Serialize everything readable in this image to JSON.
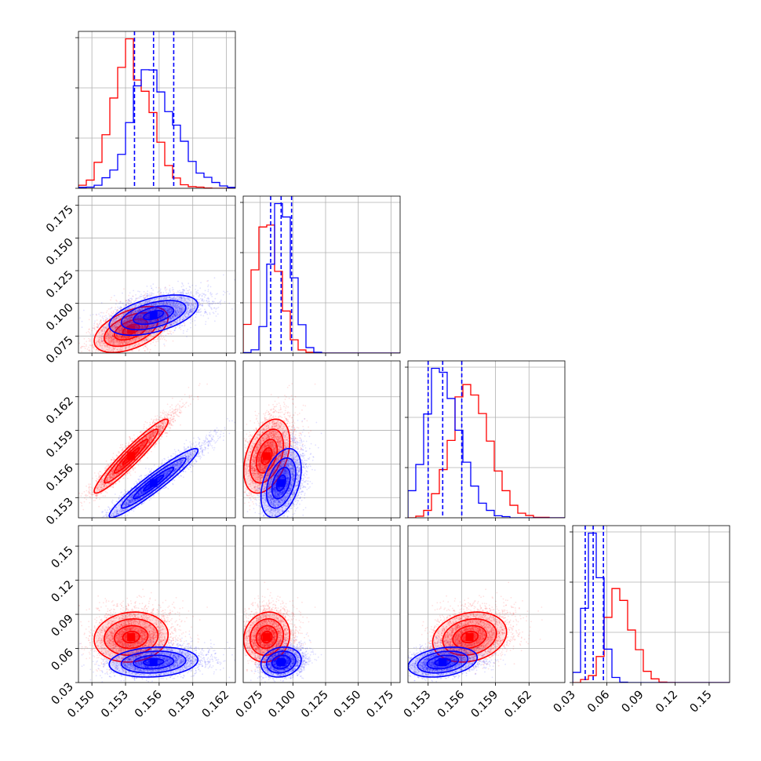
{
  "chart_data": {
    "type": "corner",
    "dimensions": 4,
    "grid": true,
    "colors": {
      "red": "#ff0000",
      "blue": "#0000ff"
    },
    "series": [
      {
        "color": "#ff0000",
        "mean": [
          0.1535,
          0.08,
          0.1567,
          0.07
        ],
        "sd": [
          0.0015,
          0.008,
          0.0015,
          0.01
        ],
        "corr": [
          [
            1,
            0.5,
            0.95,
            0.1
          ],
          [
            0.5,
            1,
            0.4,
            0.1
          ],
          [
            0.95,
            0.4,
            1,
            0.2
          ],
          [
            0.1,
            0.1,
            0.2,
            1
          ]
        ]
      },
      {
        "color": "#0000ff",
        "mean": [
          0.1555,
          0.091,
          0.1543,
          0.048
        ],
        "sd": [
          0.0018,
          0.007,
          0.0014,
          0.006
        ],
        "corr": [
          [
            1,
            0.5,
            0.95,
            0.15
          ],
          [
            0.5,
            1,
            0.4,
            0.15
          ],
          [
            0.95,
            0.4,
            1,
            0.3
          ],
          [
            0.15,
            0.15,
            0.3,
            1
          ]
        ],
        "quantile_lines": true
      }
    ],
    "quantiles": [
      [
        0.1538,
        0.1555,
        0.1573
      ],
      [
        0.083,
        0.091,
        0.099
      ],
      [
        0.153,
        0.1543,
        0.156
      ],
      [
        0.041,
        0.048,
        0.057
      ]
    ],
    "axes": [
      {
        "range": [
          0.1488,
          0.1628
        ],
        "ticks": [
          "0.150",
          "0.153",
          "0.156",
          "0.159",
          "0.162"
        ],
        "tick_values": [
          0.15,
          0.153,
          0.156,
          0.159,
          0.162
        ]
      },
      {
        "range": [
          0.062,
          0.182
        ],
        "ticks": [
          "0.075",
          "0.100",
          "0.125",
          "0.150",
          "0.175"
        ],
        "tick_values": [
          0.075,
          0.1,
          0.125,
          0.15,
          0.175
        ]
      },
      {
        "range": [
          0.1512,
          0.1652
        ],
        "ticks": [
          "0.153",
          "0.156",
          "0.159",
          "0.162"
        ],
        "tick_values": [
          0.153,
          0.156,
          0.159,
          0.162
        ]
      },
      {
        "range": [
          0.03,
          0.168
        ],
        "ticks": [
          "0.03",
          "0.06",
          "0.09",
          "0.12",
          "0.15"
        ],
        "tick_values": [
          0.03,
          0.06,
          0.09,
          0.12,
          0.15
        ]
      }
    ],
    "xlabel": "",
    "ylabel": ""
  }
}
